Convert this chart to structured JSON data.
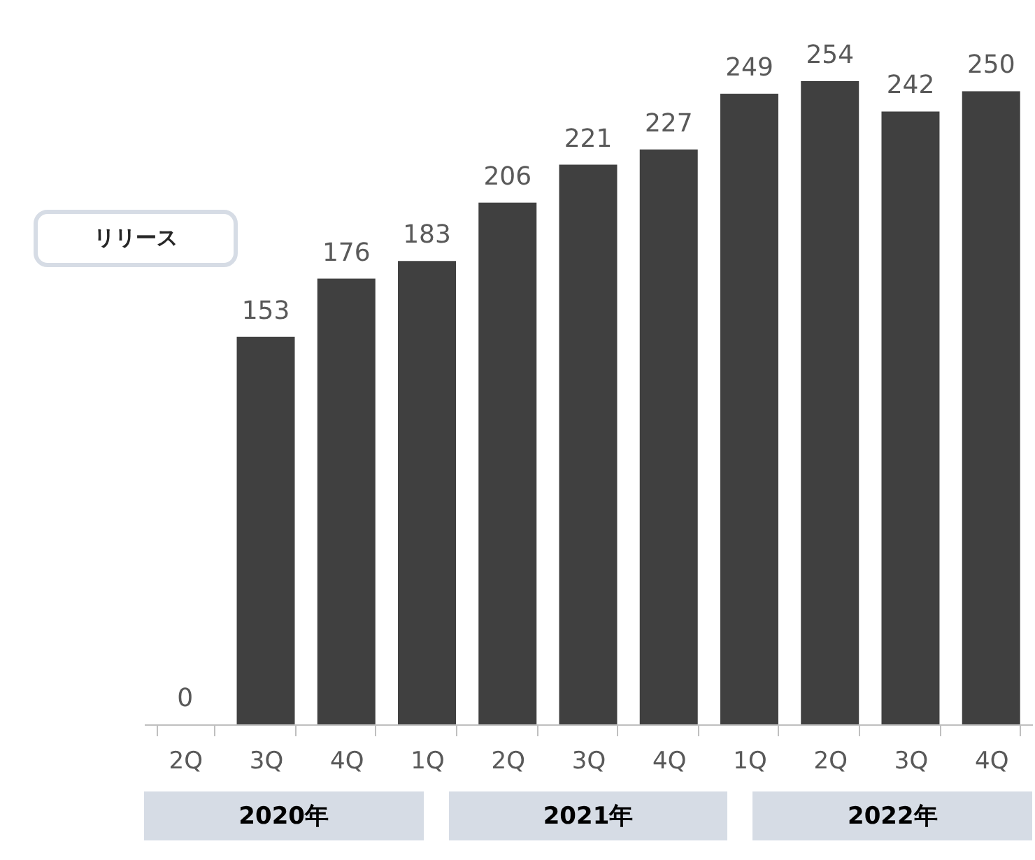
{
  "chart_data": {
    "type": "bar",
    "categories": [
      "2Q",
      "3Q",
      "4Q",
      "1Q",
      "2Q",
      "3Q",
      "4Q",
      "1Q",
      "2Q",
      "3Q",
      "4Q"
    ],
    "values": [
      0,
      153,
      176,
      183,
      206,
      221,
      227,
      249,
      254,
      242,
      250
    ],
    "color": "#404040",
    "data_labels": true,
    "annotations": [
      "リリース",
      "2020年",
      "2021年",
      "2022年"
    ]
  }
}
